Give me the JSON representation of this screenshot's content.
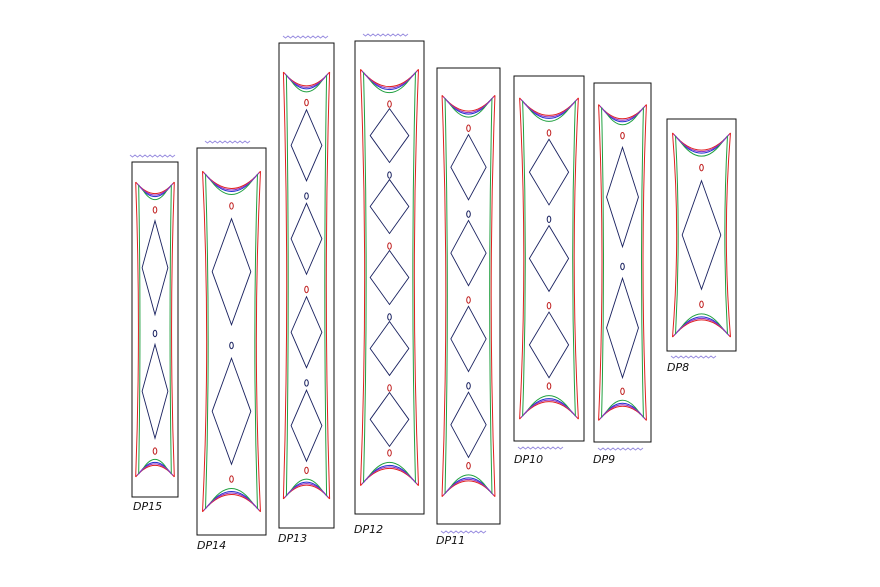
{
  "nodes": [
    {
      "label": "DP15"
    },
    {
      "label": "DP14"
    },
    {
      "label": "DP13"
    },
    {
      "label": "DP12"
    },
    {
      "label": "DP11"
    },
    {
      "label": "DP10"
    },
    {
      "label": "DP9"
    },
    {
      "label": "DP8"
    }
  ]
}
